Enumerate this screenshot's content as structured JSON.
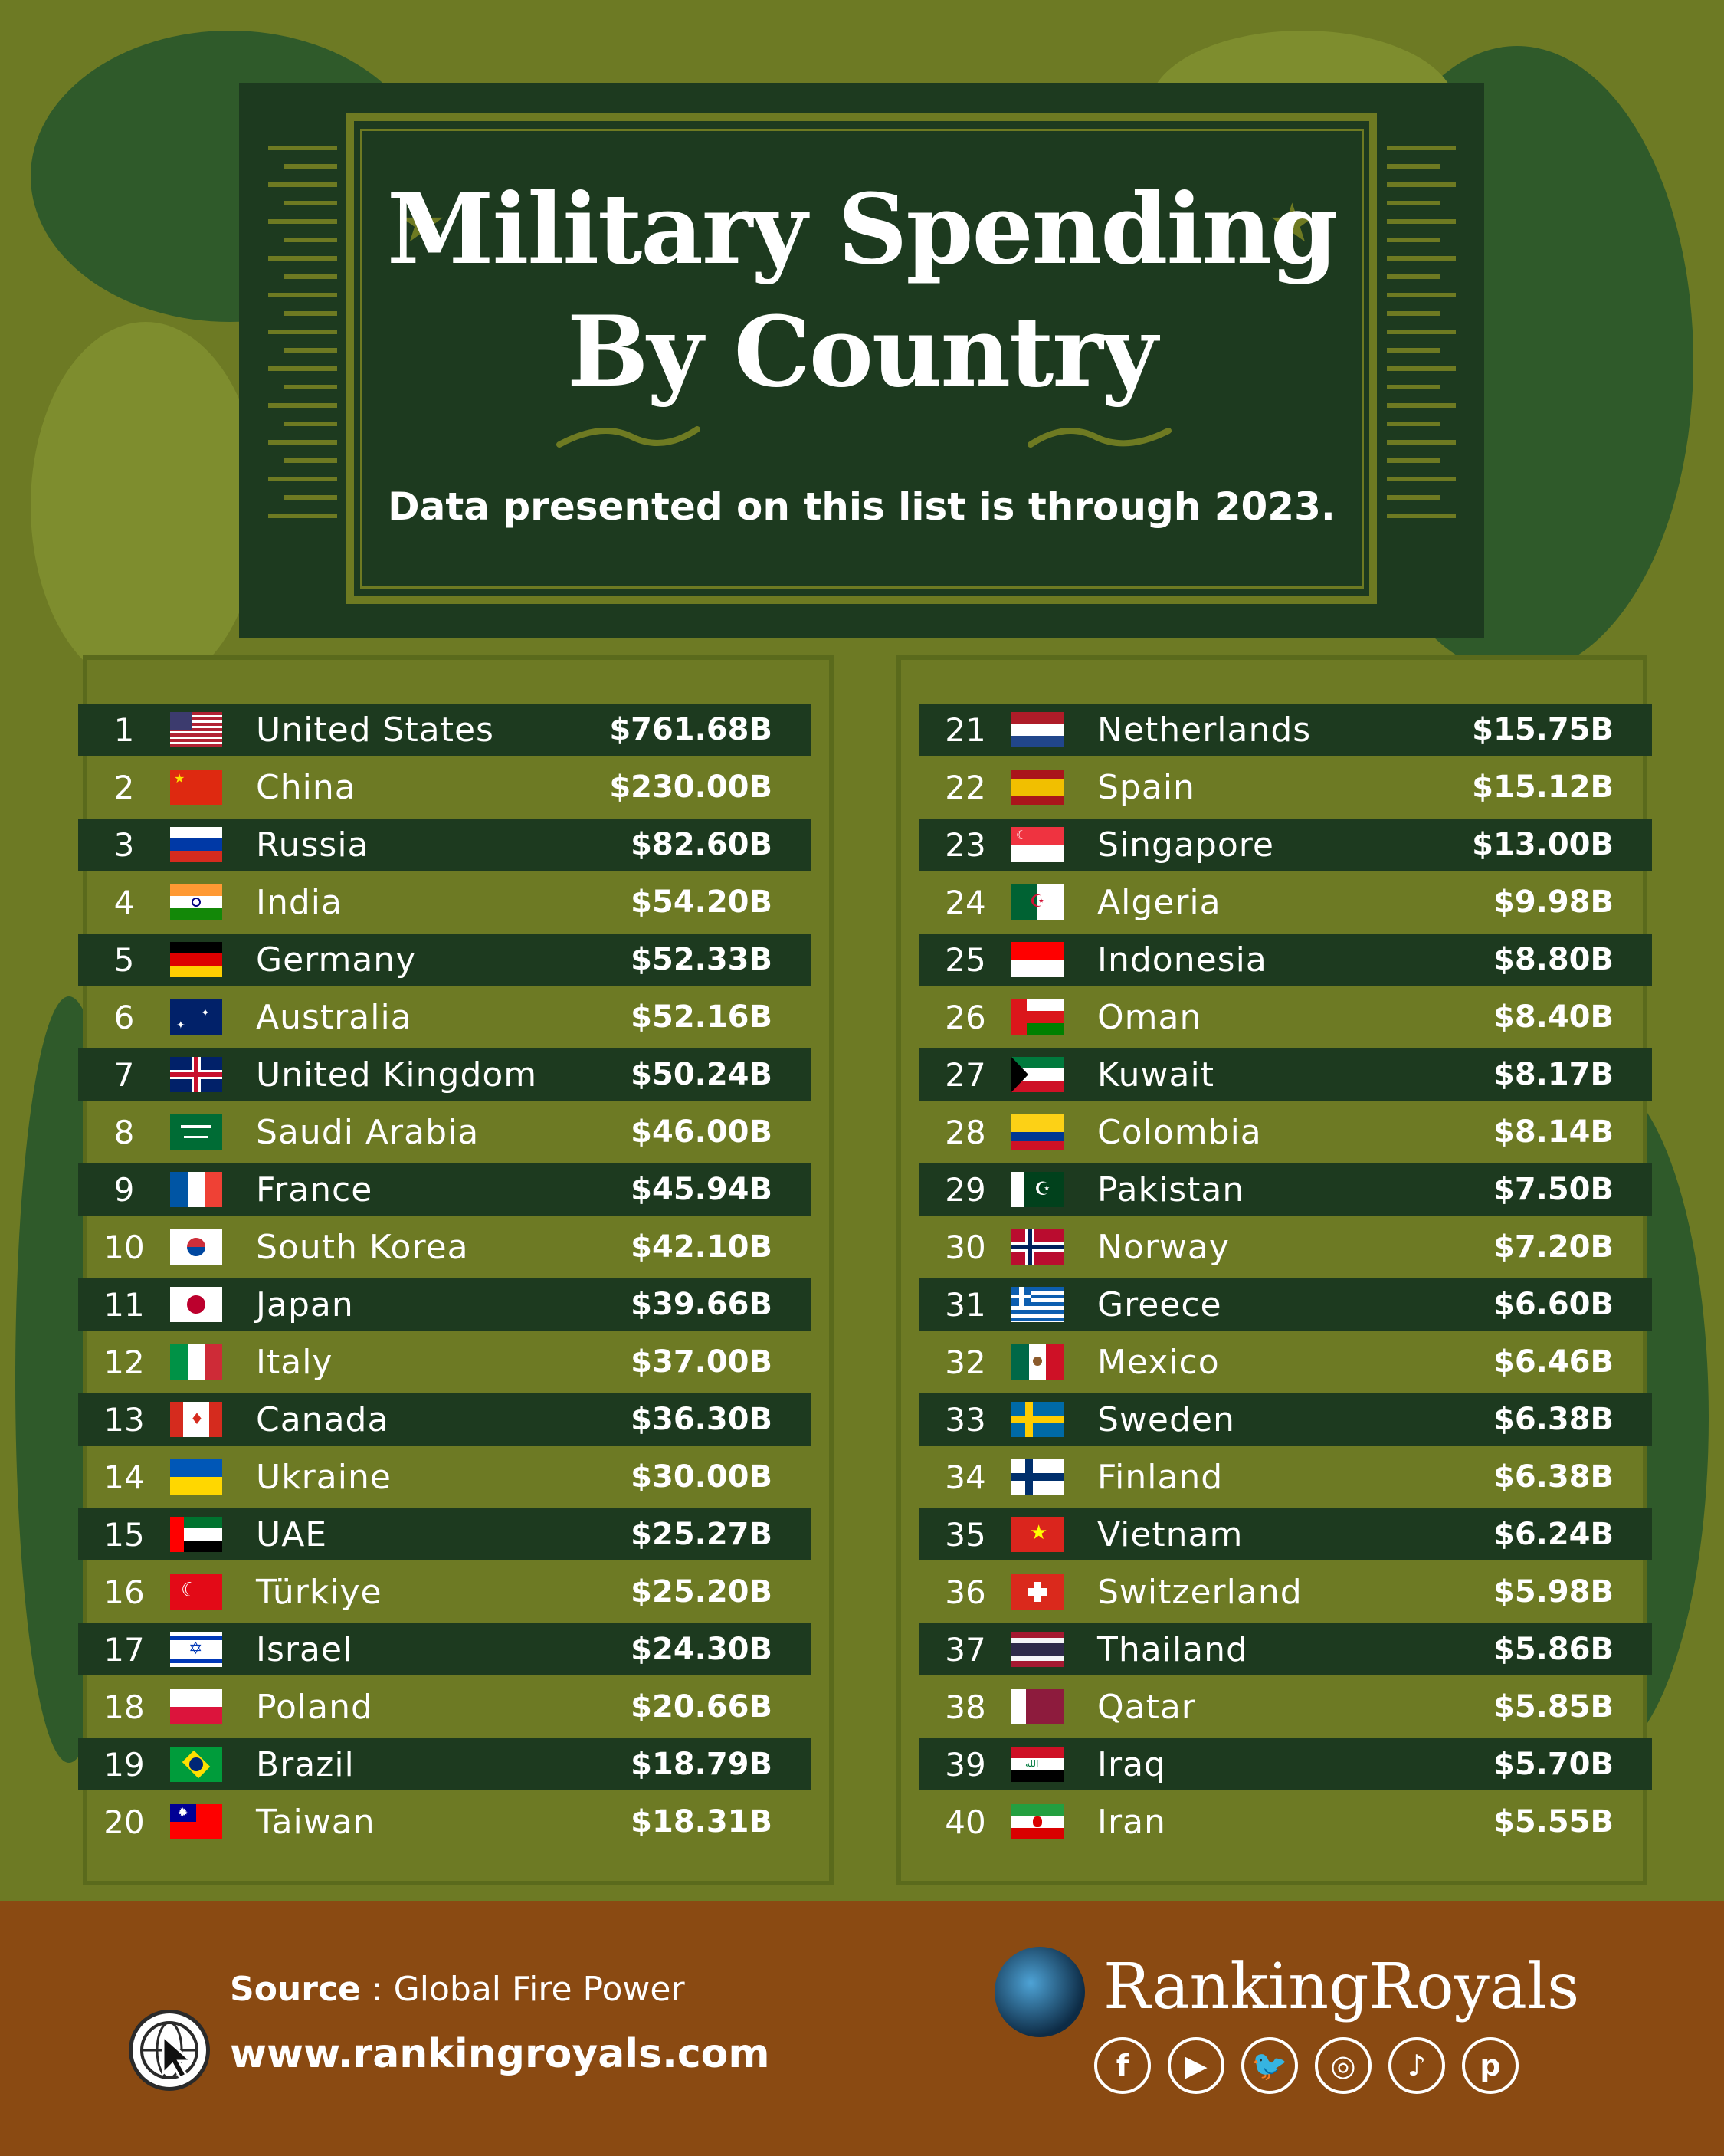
{
  "title_line1": "Military Spending",
  "title_line2": "By Country",
  "subtitle": "Data presented on this list is through 2023.",
  "left_table": [
    {
      "rank": "1",
      "country": "United States",
      "value": "$761.68B",
      "flag": "us"
    },
    {
      "rank": "2",
      "country": "China",
      "value": "$230.00B",
      "flag": "cn"
    },
    {
      "rank": "3",
      "country": "Russia",
      "value": "$82.60B",
      "flag": "ru"
    },
    {
      "rank": "4",
      "country": "India",
      "value": "$54.20B",
      "flag": "in"
    },
    {
      "rank": "5",
      "country": "Germany",
      "value": "$52.33B",
      "flag": "de"
    },
    {
      "rank": "6",
      "country": "Australia",
      "value": "$52.16B",
      "flag": "au"
    },
    {
      "rank": "7",
      "country": "United Kingdom",
      "value": "$50.24B",
      "flag": "gb"
    },
    {
      "rank": "8",
      "country": "Saudi Arabia",
      "value": "$46.00B",
      "flag": "sa"
    },
    {
      "rank": "9",
      "country": "France",
      "value": "$45.94B",
      "flag": "fr"
    },
    {
      "rank": "10",
      "country": "South Korea",
      "value": "$42.10B",
      "flag": "kr"
    },
    {
      "rank": "11",
      "country": "Japan",
      "value": "$39.66B",
      "flag": "jp"
    },
    {
      "rank": "12",
      "country": "Italy",
      "value": "$37.00B",
      "flag": "it"
    },
    {
      "rank": "13",
      "country": "Canada",
      "value": "$36.30B",
      "flag": "ca"
    },
    {
      "rank": "14",
      "country": "Ukraine",
      "value": "$30.00B",
      "flag": "ua"
    },
    {
      "rank": "15",
      "country": "UAE",
      "value": "$25.27B",
      "flag": "ae"
    },
    {
      "rank": "16",
      "country": "Türkiye",
      "value": "$25.20B",
      "flag": "tr"
    },
    {
      "rank": "17",
      "country": "Israel",
      "value": "$24.30B",
      "flag": "il"
    },
    {
      "rank": "18",
      "country": "Poland",
      "value": "$20.66B",
      "flag": "pl"
    },
    {
      "rank": "19",
      "country": "Brazil",
      "value": "$18.79B",
      "flag": "br"
    },
    {
      "rank": "20",
      "country": "Taiwan",
      "value": "$18.31B",
      "flag": "tw"
    }
  ],
  "right_table": [
    {
      "rank": "21",
      "country": "Netherlands",
      "value": "$15.75B",
      "flag": "nl"
    },
    {
      "rank": "22",
      "country": "Spain",
      "value": "$15.12B",
      "flag": "es"
    },
    {
      "rank": "23",
      "country": "Singapore",
      "value": "$13.00B",
      "flag": "sg"
    },
    {
      "rank": "24",
      "country": "Algeria",
      "value": "$9.98B",
      "flag": "dz"
    },
    {
      "rank": "25",
      "country": "Indonesia",
      "value": "$8.80B",
      "flag": "id"
    },
    {
      "rank": "26",
      "country": "Oman",
      "value": "$8.40B",
      "flag": "om"
    },
    {
      "rank": "27",
      "country": "Kuwait",
      "value": "$8.17B",
      "flag": "kw"
    },
    {
      "rank": "28",
      "country": "Colombia",
      "value": "$8.14B",
      "flag": "co"
    },
    {
      "rank": "29",
      "country": "Pakistan",
      "value": "$7.50B",
      "flag": "pk"
    },
    {
      "rank": "30",
      "country": "Norway",
      "value": "$7.20B",
      "flag": "no"
    },
    {
      "rank": "31",
      "country": "Greece",
      "value": "$6.60B",
      "flag": "gr"
    },
    {
      "rank": "32",
      "country": "Mexico",
      "value": "$6.46B",
      "flag": "mx"
    },
    {
      "rank": "33",
      "country": "Sweden",
      "value": "$6.38B",
      "flag": "se"
    },
    {
      "rank": "34",
      "country": "Finland",
      "value": "$6.38B",
      "flag": "fi"
    },
    {
      "rank": "35",
      "country": "Vietnam",
      "value": "$6.24B",
      "flag": "vn"
    },
    {
      "rank": "36",
      "country": "Switzerland",
      "value": "$5.98B",
      "flag": "ch"
    },
    {
      "rank": "37",
      "country": "Thailand",
      "value": "$5.86B",
      "flag": "th"
    },
    {
      "rank": "38",
      "country": "Qatar",
      "value": "$5.85B",
      "flag": "qa"
    },
    {
      "rank": "39",
      "country": "Iraq",
      "value": "$5.70B",
      "flag": "iq"
    },
    {
      "rank": "40",
      "country": "Iran",
      "value": "$5.55B",
      "flag": "ir"
    }
  ],
  "footer": {
    "source_label": "Source",
    "source_sep": " : ",
    "source_value": "Global Fire Power",
    "website": "www.rankingroyals.com",
    "brand": "RankingRoyals",
    "social_icons": [
      "facebook-icon",
      "youtube-icon",
      "twitter-icon",
      "instagram-icon",
      "tiktok-icon",
      "pinterest-icon"
    ]
  },
  "colors": {
    "dark_green": "#1d3a1f",
    "olive": "#6d7a24",
    "brown": "#8a4a12",
    "text": "#ffffff"
  }
}
